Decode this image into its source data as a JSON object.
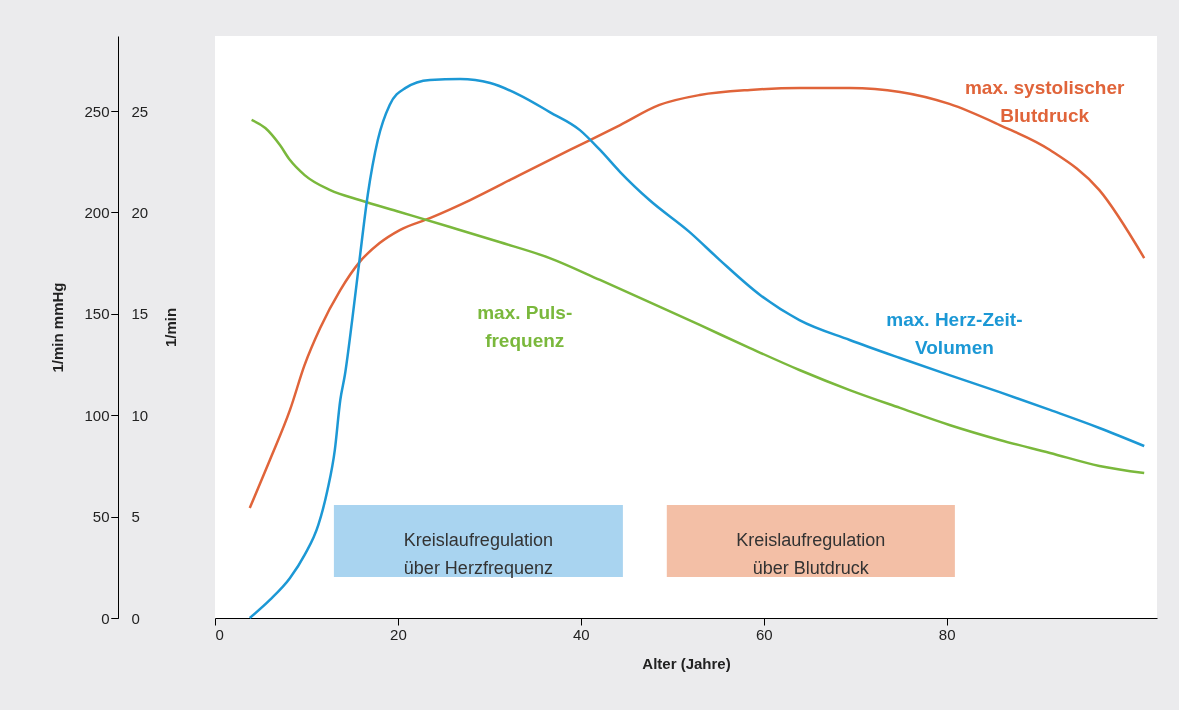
{
  "chart_data": {
    "type": "line",
    "xlabel": "Alter (Jahre)",
    "ylabel": "1/min mmHg",
    "y2label": "1/min",
    "xlim": [
      0,
      103
    ],
    "xticks": [
      0,
      20,
      40,
      60,
      80
    ],
    "ylim": [
      0,
      287
    ],
    "yticks": [
      0,
      50,
      100,
      150,
      200,
      250
    ],
    "y2lim": [
      0,
      28.7
    ],
    "y2ticks": [
      0,
      5,
      10,
      15,
      20,
      25
    ],
    "grid": false,
    "legend": false,
    "marker": "none",
    "line_style": "solid",
    "series": [
      {
        "name": "max. systolischer\nBlutdruck",
        "color": "#e0643a",
        "x": [
          3.8,
          6.0,
          8.2,
          9.8,
          11.5,
          13.7,
          15.8,
          18.0,
          20.2,
          23.5,
          27.9,
          33.3,
          38.8,
          44.3,
          48.6,
          53.0,
          58.5,
          63.9,
          69.4,
          74.9,
          80.3,
          85.8,
          91.3,
          96.7,
          101.6
        ],
        "values": [
          54.2,
          77.9,
          102.6,
          124.8,
          143.0,
          161.7,
          175.5,
          184.9,
          191.3,
          197.2,
          206.1,
          218.4,
          230.8,
          243.1,
          253.0,
          257.9,
          260.4,
          261.3,
          261.3,
          259.4,
          253.5,
          243.1,
          230.8,
          211.0,
          177.5
        ]
      },
      {
        "name": "max. Puls-\nfrequenz",
        "color": "#7ab83c",
        "x": [
          4.0,
          5.5,
          7.1,
          8.2,
          9.8,
          12.6,
          15.8,
          20.2,
          25.7,
          31.1,
          36.6,
          42.1,
          47.5,
          53.0,
          58.5,
          63.9,
          69.4,
          74.9,
          80.3,
          85.8,
          91.3,
          96.7,
          101.6
        ],
        "values": [
          245.6,
          241.6,
          233.2,
          225.8,
          218.4,
          211.0,
          206.1,
          200.2,
          192.8,
          185.4,
          177.5,
          166.7,
          155.8,
          144.5,
          133.1,
          122.3,
          112.4,
          103.6,
          95.2,
          87.8,
          81.4,
          75.0,
          71.5
        ]
      },
      {
        "name": "max. Herz-Zeit-\nVolumen",
        "color": "#1c98d5",
        "axis": "y2",
        "x": [
          3.8,
          6.0,
          8.2,
          9.8,
          11.3,
          12.3,
          13.1,
          13.7,
          14.2,
          15.0,
          15.8,
          16.7,
          17.8,
          19.1,
          20.8,
          23.5,
          26.8,
          30.1,
          33.3,
          36.6,
          39.9,
          42.1,
          44.3,
          47.5,
          51.9,
          55.2,
          59.6,
          63.9,
          69.4,
          74.9,
          80.3,
          85.8,
          91.3,
          96.7,
          101.6
        ],
        "values": [
          0,
          0.89,
          1.97,
          3.11,
          4.59,
          6.31,
          8.28,
          10.75,
          11.98,
          14.69,
          17.65,
          20.86,
          23.57,
          25.3,
          26.13,
          26.53,
          26.58,
          26.38,
          25.79,
          24.95,
          24.06,
          23.08,
          21.99,
          20.61,
          19.03,
          17.65,
          15.93,
          14.69,
          13.71,
          12.82,
          11.98,
          11.14,
          10.26,
          9.37,
          8.48
        ]
      }
    ],
    "bands": [
      {
        "axis": "x",
        "from": 13.0,
        "to": 44.6,
        "label": "Kreislaufregulation\nüber Herzfrequenz",
        "color": "#a9d4f0"
      },
      {
        "axis": "x",
        "from": 49.4,
        "to": 80.9,
        "label": "Kreislaufregulation\nüber Blutdruck",
        "color": "#f3bfa6"
      }
    ]
  }
}
